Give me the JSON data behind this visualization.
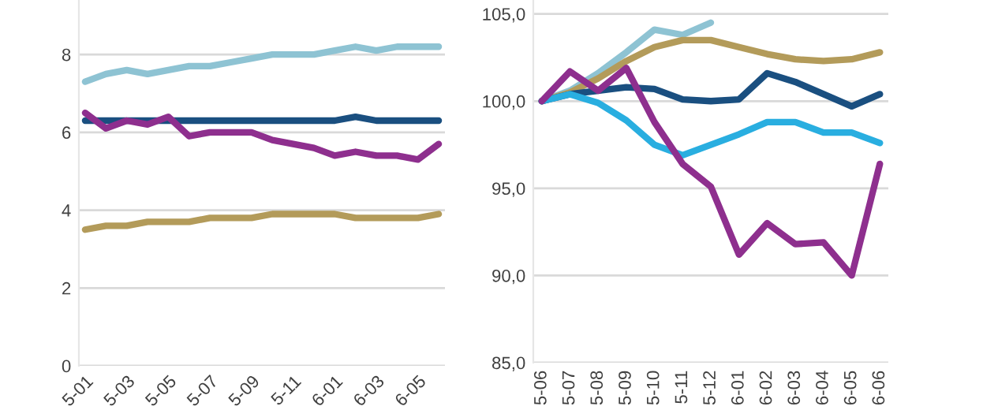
{
  "chart_data": [
    {
      "type": "line",
      "categories": [
        "5-01",
        null,
        "5-03",
        null,
        "5-05",
        null,
        "5-07",
        null,
        "5-09",
        null,
        "5-11",
        null,
        "6-01",
        null,
        "6-03",
        null,
        "6-05",
        null
      ],
      "ylim": [
        0,
        9.4
      ],
      "yticks": [
        0,
        2,
        4,
        6,
        8
      ],
      "grid": "y",
      "marker": "none",
      "line_style": "solid",
      "series": [
        {
          "color": "#8ec3d3",
          "values": [
            7.3,
            7.5,
            7.6,
            7.5,
            7.6,
            7.7,
            7.7,
            7.8,
            7.9,
            8.0,
            8.0,
            8.0,
            8.1,
            8.2,
            8.1,
            8.2,
            8.2,
            8.2
          ]
        },
        {
          "color": "#1a4f80",
          "values": [
            6.3,
            6.3,
            6.3,
            6.3,
            6.3,
            6.3,
            6.3,
            6.3,
            6.3,
            6.3,
            6.3,
            6.3,
            6.3,
            6.4,
            6.3,
            6.3,
            6.3,
            6.3
          ]
        },
        {
          "color": "#8e2f8e",
          "values": [
            6.5,
            6.1,
            6.3,
            6.2,
            6.4,
            5.9,
            6.0,
            6.0,
            6.0,
            5.8,
            5.7,
            5.6,
            5.4,
            5.5,
            5.4,
            5.4,
            5.3,
            5.7
          ]
        },
        {
          "color": "#b39b5a",
          "values": [
            3.5,
            3.6,
            3.6,
            3.7,
            3.7,
            3.7,
            3.8,
            3.8,
            3.8,
            3.9,
            3.9,
            3.9,
            3.9,
            3.8,
            3.8,
            3.8,
            3.8,
            3.9
          ]
        }
      ]
    },
    {
      "type": "line",
      "categories": [
        "5-06",
        "5-07",
        "5-08",
        "5-09",
        "5-10",
        "5-11",
        "5-12",
        "6-01",
        "6-02",
        "6-03",
        "6-04",
        "6-05",
        "6-06"
      ],
      "ylim": [
        85,
        105.8
      ],
      "yticks": [
        {
          "value": 85,
          "label": "85,0"
        },
        {
          "value": 90,
          "label": "90,0"
        },
        {
          "value": 95,
          "label": "95,0"
        },
        {
          "value": 100,
          "label": "100,0"
        },
        {
          "value": 105,
          "label": "105,0"
        }
      ],
      "grid": "y",
      "marker": "none",
      "line_style": "solid",
      "series": [
        {
          "color": "#8ec3d3",
          "values": [
            100,
            100.6,
            101.6,
            102.8,
            104.1,
            103.8,
            104.5,
            null,
            null,
            null,
            null,
            null,
            null
          ]
        },
        {
          "color": "#b39b5a",
          "values": [
            100,
            100.5,
            101.3,
            102.3,
            103.1,
            103.5,
            103.5,
            103.1,
            102.7,
            102.4,
            102.3,
            102.4,
            102.8
          ]
        },
        {
          "color": "#1a4f80",
          "values": [
            100,
            100.4,
            100.6,
            100.8,
            100.7,
            100.1,
            100.0,
            100.1,
            101.6,
            101.1,
            100.4,
            99.7,
            100.4
          ]
        },
        {
          "color": "#29aee0",
          "values": [
            100,
            100.4,
            99.9,
            98.9,
            97.5,
            96.9,
            97.5,
            98.1,
            98.8,
            98.8,
            98.2,
            98.2,
            97.6
          ]
        },
        {
          "color": "#8e2f8e",
          "values": [
            100,
            101.7,
            100.6,
            101.9,
            98.8,
            96.4,
            95.1,
            91.2,
            93.0,
            91.8,
            91.9,
            90.0,
            96.4
          ]
        }
      ]
    }
  ]
}
